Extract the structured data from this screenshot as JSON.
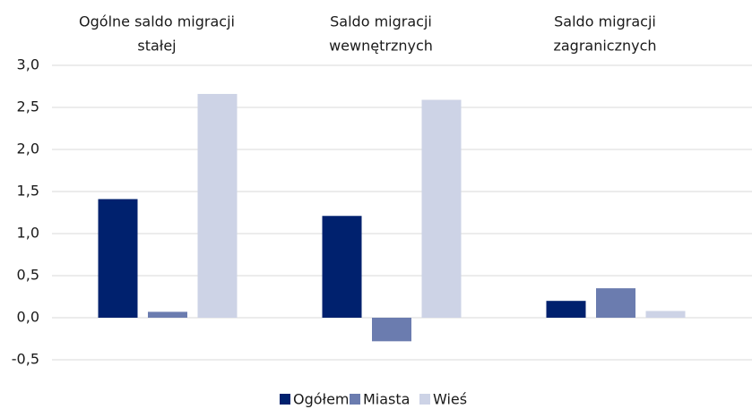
{
  "chart_data": {
    "type": "bar",
    "categories": [
      [
        "Ogólne saldo migracji",
        "stałej"
      ],
      [
        "Saldo migracji",
        "wewnętrznych"
      ],
      [
        "Saldo migracji",
        "zagranicznych"
      ]
    ],
    "series": [
      {
        "name": "Ogółem",
        "color": "#00216e",
        "values": [
          1.41,
          1.21,
          0.2
        ]
      },
      {
        "name": "Miasta",
        "color": "#6b7caf",
        "values": [
          0.07,
          -0.28,
          0.35
        ]
      },
      {
        "name": "Wieś",
        "color": "#cdd3e6",
        "values": [
          2.66,
          2.59,
          0.08
        ]
      }
    ],
    "ylim": [
      -0.5,
      3.0
    ],
    "yticks": [
      {
        "value": -0.5,
        "label": "-0,5"
      },
      {
        "value": 0,
        "label": "0,0"
      },
      {
        "value": 0.5,
        "label": "0,5"
      },
      {
        "value": 1.0,
        "label": "1,0"
      },
      {
        "value": 1.5,
        "label": "1,5"
      },
      {
        "value": 2.0,
        "label": "2,0"
      },
      {
        "value": 2.5,
        "label": "2,5"
      },
      {
        "value": 3.0,
        "label": "3,0"
      }
    ],
    "grid": true,
    "legend": "bottom"
  }
}
